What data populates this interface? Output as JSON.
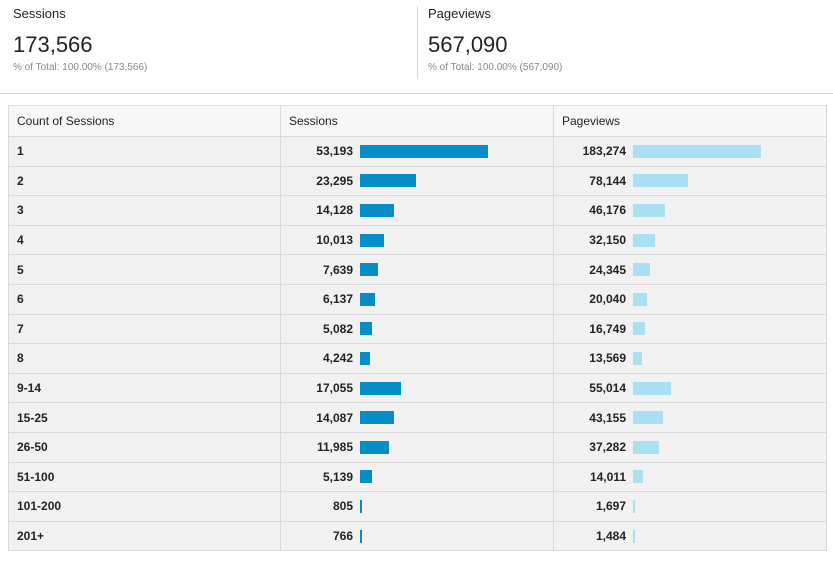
{
  "summary": {
    "sessions": {
      "label": "Sessions",
      "value": "173,566",
      "pct_prefix": "% of Total: 100.00%",
      "pct_total": "(173,566)"
    },
    "pageviews": {
      "label": "Pageviews",
      "value": "567,090",
      "pct_prefix": "% of Total: 100.00%",
      "pct_total": "(567,090)"
    }
  },
  "table": {
    "headers": [
      "Count of Sessions",
      "Sessions",
      "Pageviews"
    ],
    "rows": [
      {
        "dim": "1",
        "sessions": "53,193",
        "pageviews": "183,274"
      },
      {
        "dim": "2",
        "sessions": "23,295",
        "pageviews": "78,144"
      },
      {
        "dim": "3",
        "sessions": "14,128",
        "pageviews": "46,176"
      },
      {
        "dim": "4",
        "sessions": "10,013",
        "pageviews": "32,150"
      },
      {
        "dim": "5",
        "sessions": "7,639",
        "pageviews": "24,345"
      },
      {
        "dim": "6",
        "sessions": "6,137",
        "pageviews": "20,040"
      },
      {
        "dim": "7",
        "sessions": "5,082",
        "pageviews": "16,749"
      },
      {
        "dim": "8",
        "sessions": "4,242",
        "pageviews": "13,569"
      },
      {
        "dim": "9-14",
        "sessions": "17,055",
        "pageviews": "55,014"
      },
      {
        "dim": "15-25",
        "sessions": "14,087",
        "pageviews": "43,155"
      },
      {
        "dim": "26-50",
        "sessions": "11,985",
        "pageviews": "37,282"
      },
      {
        "dim": "51-100",
        "sessions": "5,139",
        "pageviews": "14,011"
      },
      {
        "dim": "101-200",
        "sessions": "805",
        "pageviews": "1,697"
      },
      {
        "dim": "201+",
        "sessions": "766",
        "pageviews": "1,484"
      }
    ]
  },
  "colors": {
    "sessions_bar": "#058dc7",
    "pageviews_bar": "#aadff3"
  }
}
